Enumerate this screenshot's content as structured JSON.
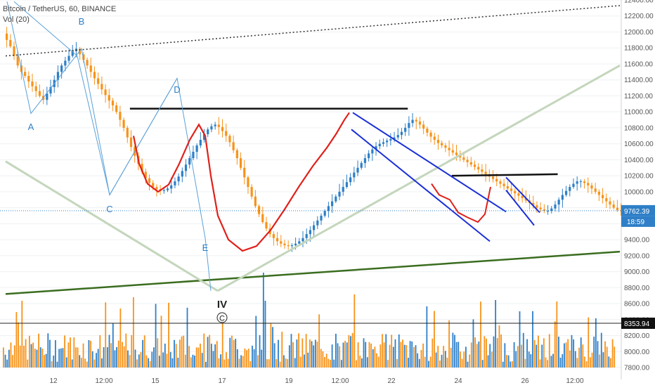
{
  "chart_data": {
    "type": "candlestick",
    "title": "Bitcoin / TetherUS, 60, BINANCE",
    "volume_label": "Vol (20)",
    "y_ticks": [
      12400,
      12200,
      12000,
      11800,
      11600,
      11400,
      11200,
      11000,
      10800,
      10600,
      10400,
      10200,
      10000,
      9800,
      9600,
      9400,
      9200,
      9000,
      8800,
      8600,
      8400,
      8200,
      8000,
      7800
    ],
    "y_tick_labels": [
      "12400.00",
      "12200.00",
      "12000.00",
      "11800.00",
      "11600.00",
      "11400.00",
      "11200.00",
      "11000.00",
      "10800.00",
      "10600.00",
      "10400.00",
      "10200.00",
      "10000.00",
      "9800.00",
      "9600.00",
      "9400.00",
      "9200.00",
      "9000.00",
      "8800.00",
      "8600.00",
      "8400.00",
      "8200.00",
      "8000.00",
      "7800.00"
    ],
    "x_tick_labels": [
      "12",
      "12:00",
      "15",
      "17",
      "19",
      "12:00",
      "22",
      "24",
      "26",
      "12:00"
    ],
    "price_tags": {
      "current_price": "9762.39",
      "countdown": "18:59",
      "reference_price": "8353.94"
    },
    "wave_labels": [
      "A",
      "B",
      "C",
      "D",
      "E"
    ],
    "wave_degree_labels": [
      "IV",
      "C"
    ],
    "colors": {
      "up": "#2e7fc7",
      "down": "#f7931a",
      "wave": "#5aa0d8",
      "fit_curve": "#e0201a",
      "channel": "#1a2fd6",
      "horizontal": "#111111",
      "trend_green": "#3a6d1f",
      "trend_light": "#c4d6bc",
      "dotted": "#333333"
    },
    "price_path": [
      11980,
      11900,
      11820,
      11700,
      11580,
      11500,
      11450,
      11380,
      11320,
      11260,
      11200,
      11150,
      11230,
      11310,
      11400,
      11500,
      11580,
      11640,
      11700,
      11760,
      11790,
      11720,
      11650,
      11580,
      11500,
      11420,
      11350,
      11280,
      11210,
      11140,
      11080,
      11000,
      10900,
      10800,
      10680,
      10560,
      10450,
      10350,
      10250,
      10170,
      10110,
      10060,
      10030,
      10010,
      10020,
      10040,
      10080,
      10130,
      10190,
      10260,
      10340,
      10420,
      10500,
      10580,
      10650,
      10720,
      10780,
      10820,
      10840,
      10810,
      10760,
      10700,
      10620,
      10520,
      10420,
      10300,
      10180,
      10060,
      9940,
      9820,
      9720,
      9620,
      9540,
      9470,
      9420,
      9380,
      9350,
      9330,
      9320,
      9330,
      9350,
      9380,
      9420,
      9470,
      9520,
      9580,
      9640,
      9700,
      9760,
      9820,
      9880,
      9940,
      10000,
      10060,
      10120,
      10180,
      10240,
      10300,
      10360,
      10420,
      10480,
      10530,
      10570,
      10600,
      10620,
      10640,
      10660,
      10680,
      10710,
      10750,
      10800,
      10860,
      10900,
      10880,
      10840,
      10790,
      10740,
      10690,
      10650,
      10610,
      10580,
      10550,
      10520,
      10490,
      10460,
      10430,
      10400,
      10370,
      10340,
      10310,
      10280,
      10250,
      10220,
      10190,
      10160,
      10130,
      10100,
      10070,
      10040,
      10010,
      9980,
      9950,
      9920,
      9890,
      9860,
      9830,
      9800,
      9780,
      9760,
      9760,
      9790,
      9840,
      9900,
      9960,
      10010,
      10060,
      10100,
      10130,
      10130,
      10110,
      10080,
      10040,
      10000,
      9960,
      9920,
      9880,
      9840,
      9800,
      9770,
      9762
    ],
    "trendlines": [
      {
        "name": "dotted-resistance",
        "from": [
          0,
          11700
        ],
        "to": [
          168,
          12330
        ]
      },
      {
        "name": "green-support",
        "from": [
          0,
          8720
        ],
        "to": [
          168,
          9250
        ]
      },
      {
        "name": "light-green-rising",
        "from": [
          58,
          8760
        ],
        "to": [
          168,
          11580
        ]
      },
      {
        "name": "light-green-falling",
        "from": [
          0,
          10380
        ],
        "to": [
          58,
          8760
        ]
      },
      {
        "name": "top-horizontal",
        "from": [
          34,
          11040
        ],
        "to": [
          110,
          11040
        ]
      },
      {
        "name": "right-horizontal",
        "from": [
          122,
          10200
        ],
        "to": [
          151,
          10220
        ]
      }
    ]
  }
}
